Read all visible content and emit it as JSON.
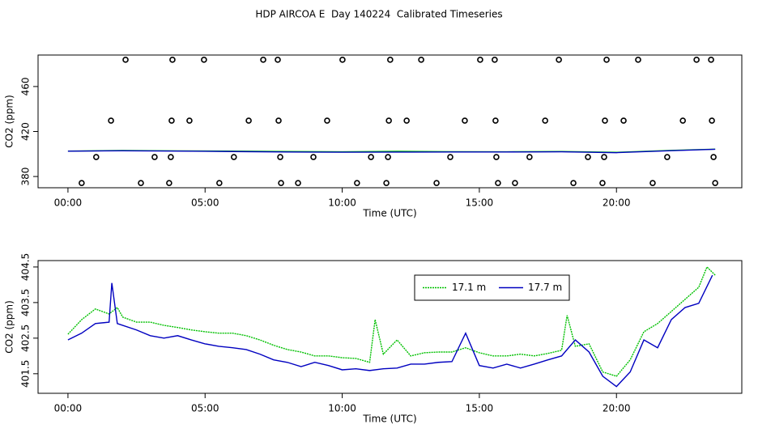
{
  "chart_data": [
    {
      "type": "scatter",
      "title": "HDP AIRCOA E  Day 140224  Calibrated Timeseries",
      "xlabel": "Time (UTC)",
      "ylabel": "CO2 (ppm)",
      "xlim": [
        -1.09,
        24.57
      ],
      "ylim": [
        370,
        488
      ],
      "xticks": [
        {
          "value": 0,
          "label": "00:00"
        },
        {
          "value": 5,
          "label": "05:00"
        },
        {
          "value": 10,
          "label": "10:00"
        },
        {
          "value": 15,
          "label": "15:00"
        },
        {
          "value": 20,
          "label": "20:00"
        }
      ],
      "yticks": [
        380,
        420,
        460
      ],
      "series": [
        {
          "mode": "points",
          "color": "#000000",
          "x": [
            2.1,
            3.81,
            4.96,
            7.12,
            7.65,
            10.01,
            11.75,
            12.88,
            15.03,
            15.56,
            17.9,
            19.64,
            20.79,
            22.92,
            23.45,
            1.57,
            3.78,
            4.43,
            6.59,
            7.68,
            9.45,
            11.7,
            12.35,
            14.47,
            15.59,
            17.4,
            19.58,
            20.26,
            22.42,
            23.48,
            1.03,
            3.16,
            3.75,
            6.05,
            7.74,
            8.95,
            11.05,
            11.67,
            13.94,
            15.62,
            16.83,
            18.96,
            19.55,
            21.85,
            23.54,
            0.5,
            2.66,
            3.69,
            5.52,
            7.77,
            8.39,
            10.54,
            11.61,
            13.44,
            15.68,
            16.3,
            18.43,
            19.49,
            21.32,
            23.6
          ],
          "values": [
            483.8,
            483.8,
            483.8,
            483.8,
            483.8,
            483.8,
            483.8,
            483.8,
            483.8,
            483.8,
            483.8,
            483.8,
            483.8,
            483.8,
            483.8,
            429.7,
            429.7,
            429.7,
            429.7,
            429.7,
            429.7,
            429.7,
            429.7,
            429.7,
            429.7,
            429.7,
            429.7,
            429.7,
            429.7,
            429.7,
            397.3,
            397.3,
            397.3,
            397.3,
            397.3,
            397.3,
            397.3,
            397.3,
            397.3,
            397.3,
            397.3,
            397.3,
            397.3,
            397.3,
            397.3,
            374.2,
            374.2,
            374.2,
            374.2,
            374.2,
            374.2,
            374.2,
            374.2,
            374.2,
            374.2,
            374.2,
            374.2,
            374.2,
            374.2,
            374.2
          ]
        },
        {
          "mode": "line",
          "color": "#00c000",
          "x": [
            0,
            2,
            4,
            6,
            8,
            10,
            12,
            14,
            16,
            18,
            20,
            22,
            23.6
          ],
          "values": [
            402.6,
            403.1,
            402.8,
            402.6,
            402.2,
            402.0,
            402.4,
            402.1,
            402.0,
            402.2,
            401.5,
            403.2,
            404.3
          ]
        },
        {
          "mode": "line",
          "color": "#0000c0",
          "x": [
            0,
            2,
            4,
            6,
            8,
            10,
            12,
            14,
            16,
            18,
            20,
            22,
            23.6
          ],
          "values": [
            402.5,
            402.9,
            402.6,
            402.2,
            401.8,
            401.6,
            401.7,
            401.8,
            401.8,
            402.0,
            401.2,
            403.0,
            404.2
          ]
        }
      ]
    },
    {
      "type": "line",
      "xlabel": "Time (UTC)",
      "ylabel": "CO2 (ppm)",
      "xlim": [
        -1.09,
        24.57
      ],
      "ylim": [
        400.95,
        404.68
      ],
      "xticks": [
        {
          "value": 0,
          "label": "00:00"
        },
        {
          "value": 5,
          "label": "05:00"
        },
        {
          "value": 10,
          "label": "10:00"
        },
        {
          "value": 15,
          "label": "15:00"
        },
        {
          "value": 20,
          "label": "20:00"
        }
      ],
      "yticks": [
        401.5,
        402.5,
        403.5,
        404.5
      ],
      "legend": "top-right",
      "series": [
        {
          "name": "17.1 m",
          "mode": "line",
          "dash": "dotted",
          "color": "#00c000",
          "x": [
            0,
            0.5,
            1,
            1.5,
            1.8,
            2,
            2.5,
            3,
            3.5,
            4,
            4.5,
            5,
            5.5,
            6,
            6.5,
            7,
            7.5,
            8,
            8.5,
            9,
            9.5,
            10,
            10.5,
            11,
            11.2,
            11.5,
            12,
            12.5,
            13,
            13.5,
            14,
            14.5,
            15,
            15.5,
            16,
            16.5,
            17,
            17.5,
            18,
            18.2,
            18.5,
            19,
            19.5,
            20,
            20.5,
            21,
            21.5,
            22,
            22.5,
            23,
            23.3,
            23.6
          ],
          "values": [
            402.61,
            403.02,
            403.32,
            403.18,
            403.36,
            403.09,
            402.95,
            402.95,
            402.86,
            402.8,
            402.73,
            402.68,
            402.64,
            402.64,
            402.57,
            402.45,
            402.3,
            402.18,
            402.11,
            402.0,
            402.0,
            401.95,
            401.93,
            401.82,
            403.02,
            402.05,
            402.45,
            402.0,
            402.09,
            402.11,
            402.11,
            402.23,
            402.09,
            402.0,
            402.0,
            402.05,
            402.0,
            402.07,
            402.16,
            403.14,
            402.27,
            402.34,
            401.55,
            401.43,
            401.89,
            402.68,
            402.91,
            403.25,
            403.59,
            403.93,
            404.5,
            404.27
          ]
        },
        {
          "name": "17.7 m",
          "mode": "line",
          "color": "#0000c0",
          "x": [
            0,
            0.5,
            1,
            1.5,
            1.6,
            1.8,
            2.5,
            3,
            3.5,
            4,
            4.5,
            5,
            5.5,
            6,
            6.5,
            7,
            7.5,
            8,
            8.5,
            9,
            9.5,
            10,
            10.5,
            11,
            11.5,
            12,
            12.5,
            13,
            13.5,
            14,
            14.5,
            15,
            15.5,
            16,
            16.5,
            17,
            17.5,
            18,
            18.5,
            19,
            19.5,
            20,
            20.5,
            21,
            21.5,
            22,
            22.5,
            23,
            23.5
          ],
          "values": [
            402.45,
            402.64,
            402.91,
            402.95,
            404.05,
            402.91,
            402.73,
            402.57,
            402.5,
            402.57,
            402.45,
            402.34,
            402.27,
            402.23,
            402.18,
            402.05,
            401.89,
            401.82,
            401.7,
            401.82,
            401.73,
            401.61,
            401.64,
            401.59,
            401.64,
            401.66,
            401.77,
            401.77,
            401.82,
            401.84,
            402.64,
            401.73,
            401.66,
            401.77,
            401.66,
            401.77,
            401.89,
            402.0,
            402.45,
            402.11,
            401.43,
            401.14,
            401.55,
            402.45,
            402.23,
            403.02,
            403.36,
            403.48,
            404.27
          ]
        }
      ]
    }
  ]
}
